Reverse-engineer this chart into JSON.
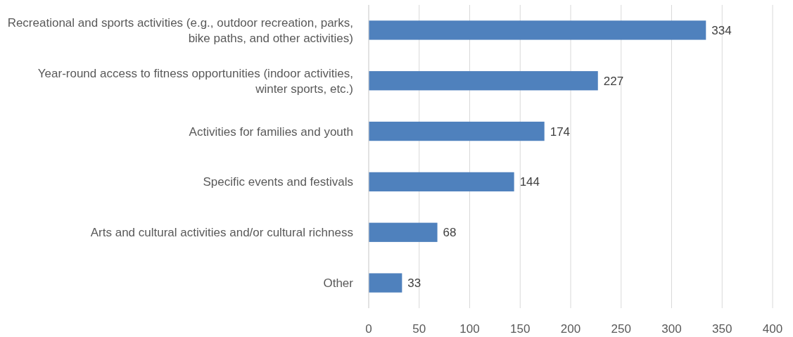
{
  "chart_data": {
    "type": "bar",
    "orientation": "horizontal",
    "categories": [
      "Recreational and sports activities (e.g., outdoor recreation, parks, bike paths, and other activities)",
      "Year-round access to fitness opportunities (indoor activities, winter sports, etc.)",
      "Activities for families and youth",
      "Specific events and festivals",
      "Arts and cultural activities and/or cultural richness",
      "Other"
    ],
    "values": [
      334,
      227,
      174,
      144,
      68,
      33
    ],
    "color": "#4f81bd",
    "xlim": [
      0,
      400
    ],
    "xticks": [
      0,
      50,
      100,
      150,
      200,
      250,
      300,
      350,
      400
    ],
    "grid": "x",
    "data_labels": true
  }
}
